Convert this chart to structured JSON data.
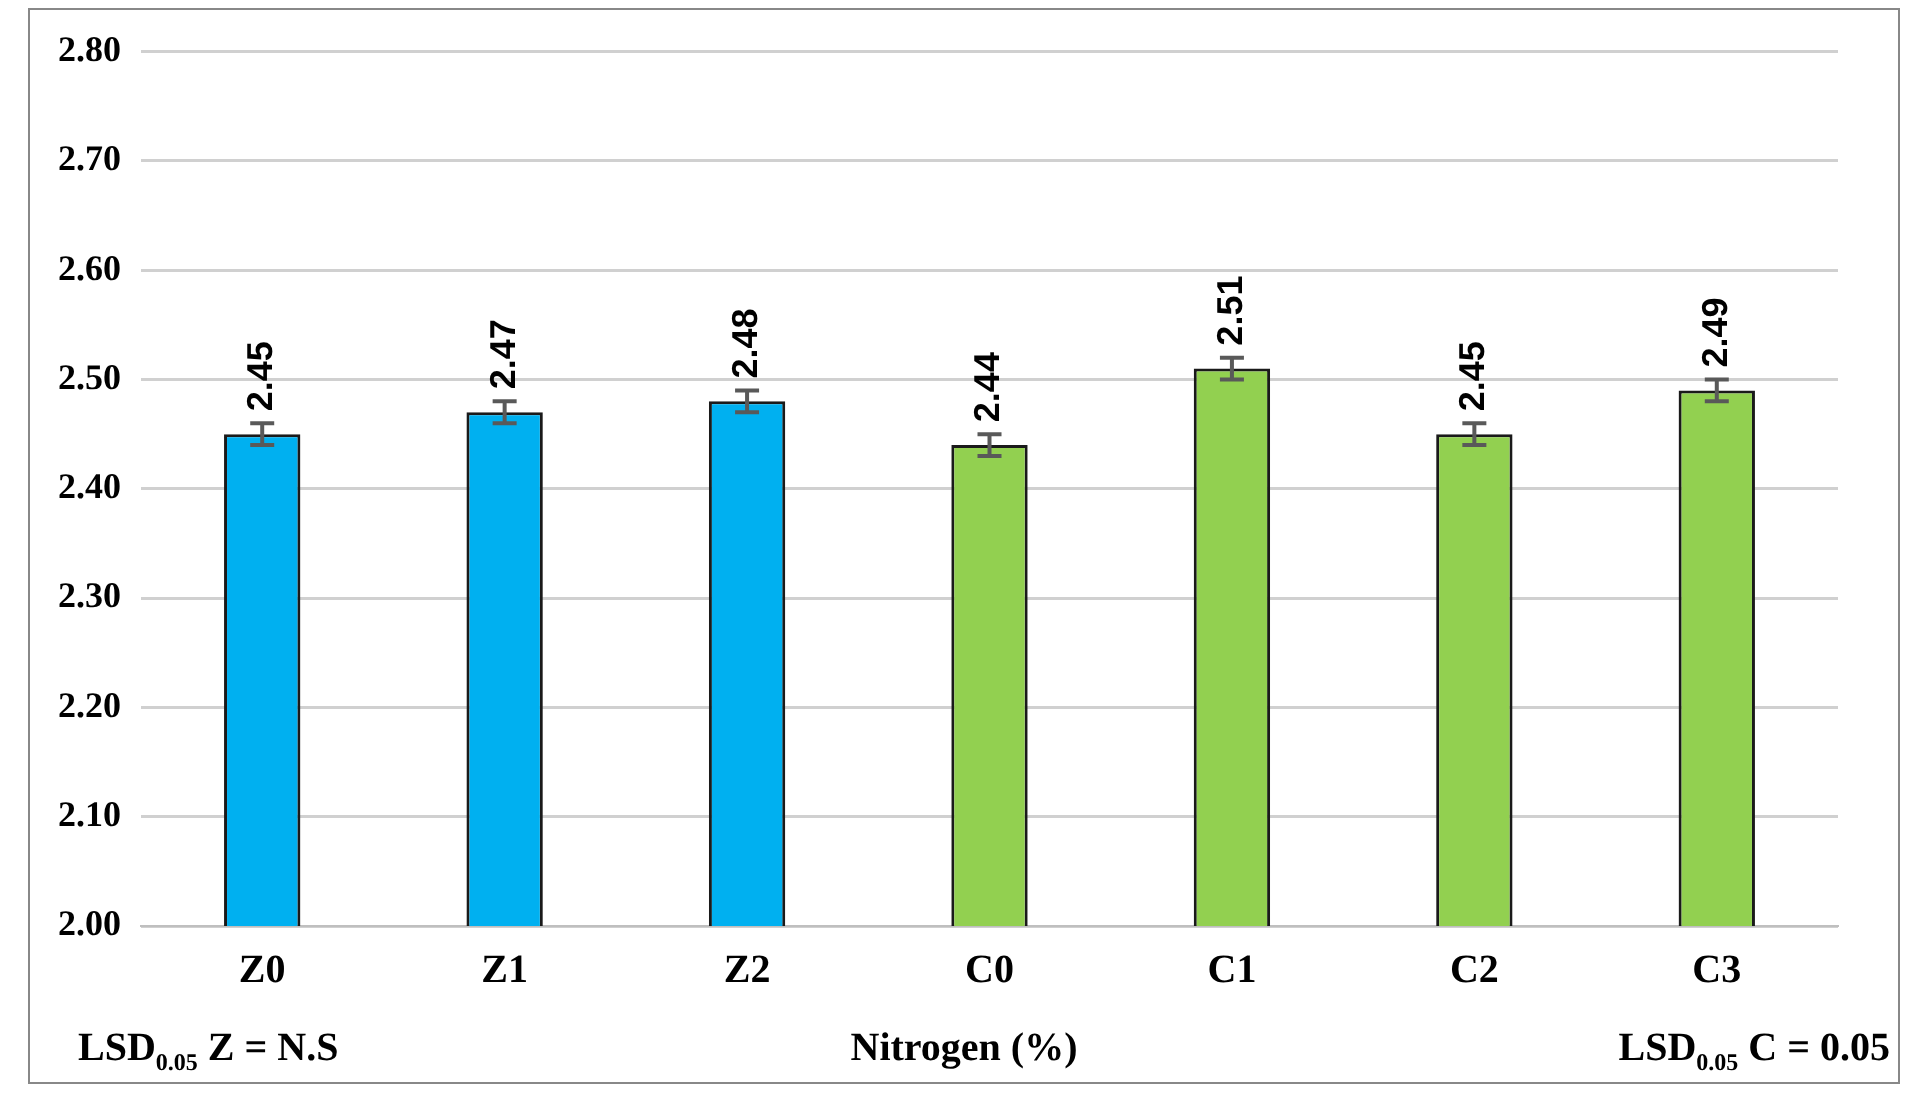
{
  "chart_data": {
    "type": "bar",
    "xlabel": "Nitrogen (%)",
    "categories": [
      "Z0",
      "Z1",
      "Z2",
      "C0",
      "C1",
      "C2",
      "C3"
    ],
    "values": [
      2.45,
      2.47,
      2.48,
      2.44,
      2.51,
      2.45,
      2.49
    ],
    "colors": [
      "#00b0f0",
      "#00b0f0",
      "#00b0f0",
      "#92d050",
      "#92d050",
      "#92d050",
      "#92d050"
    ],
    "errors": [
      0.01,
      0.01,
      0.01,
      0.01,
      0.01,
      0.01,
      0.01
    ],
    "ylim": [
      2.0,
      2.8
    ],
    "yticks": [
      {
        "value": 2.0,
        "label": "2.00"
      },
      {
        "value": 2.1,
        "label": "2.10"
      },
      {
        "value": 2.2,
        "label": "2.20"
      },
      {
        "value": 2.3,
        "label": "2.30"
      },
      {
        "value": 2.4,
        "label": "2.40"
      },
      {
        "value": 2.5,
        "label": "2.50"
      },
      {
        "value": 2.6,
        "label": "2.60"
      },
      {
        "value": 2.7,
        "label": "2.70"
      },
      {
        "value": 2.8,
        "label": "2.80"
      }
    ],
    "grid": "y",
    "data_labels": true,
    "legend": false,
    "annotations": [
      "LSD$_{0.05}$ Z = N.S",
      "LSD$_{0.05}$ C = 0.05"
    ]
  }
}
